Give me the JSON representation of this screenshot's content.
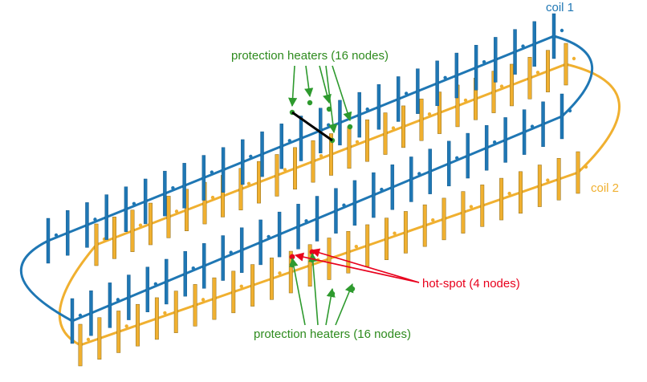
{
  "labels": {
    "coil1": "coil 1",
    "coil2": "coil 2",
    "heaters_top": "protection heaters (16 nodes)",
    "heaters_bottom": "protection heaters (16 nodes)",
    "hotspot": "hot-spot (4 nodes)"
  },
  "colors": {
    "coil1": "#1f77b4",
    "coil2": "#f0b030",
    "heater": "#2e9a2e",
    "hotspot": "#e8001c",
    "link": "#000000",
    "transition": "#8a6a3a",
    "coil1_label": "#1f77b4",
    "coil2_label": "#f0b030",
    "heater_label": "#2e8b1e",
    "hotspot_label": "#e8001c"
  }
}
